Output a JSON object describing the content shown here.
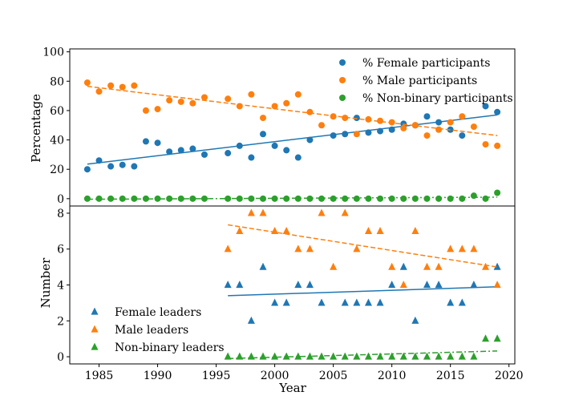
{
  "chart_data": [
    {
      "type": "scatter",
      "panel": "top",
      "ylabel": "Percentage",
      "xlim": [
        1982.5,
        2020.5
      ],
      "ylim": [
        -5,
        102
      ],
      "yticks": [
        0,
        20,
        40,
        60,
        80,
        100
      ],
      "legend_position": "top-right",
      "series": [
        {
          "name": "% Female participants",
          "color": "#1f77b4",
          "marker": "circle",
          "x": [
            1984,
            1985,
            1986,
            1987,
            1988,
            1989,
            1990,
            1991,
            1992,
            1993,
            1994,
            1996,
            1997,
            1998,
            1999,
            2000,
            2001,
            2002,
            2003,
            2005,
            2006,
            2007,
            2008,
            2009,
            2010,
            2011,
            2012,
            2013,
            2014,
            2015,
            2016,
            2018,
            2019
          ],
          "y": [
            20,
            26,
            22,
            23,
            22,
            39,
            38,
            32,
            33,
            34,
            30,
            31,
            36,
            28,
            44,
            36,
            33,
            28,
            40,
            43,
            44,
            55,
            45,
            46,
            47,
            51,
            50,
            56,
            52,
            47,
            43,
            63,
            59
          ],
          "trend": [
            23.5,
            57.0
          ],
          "trend_style": "solid"
        },
        {
          "name": "% Male participants",
          "color": "#ff7f0e",
          "marker": "circle",
          "x": [
            1984,
            1985,
            1986,
            1987,
            1988,
            1989,
            1990,
            1991,
            1992,
            1993,
            1994,
            1996,
            1997,
            1998,
            1999,
            2000,
            2001,
            2002,
            2003,
            2004,
            2005,
            2006,
            2007,
            2008,
            2009,
            2010,
            2011,
            2012,
            2013,
            2014,
            2015,
            2016,
            2017,
            2018,
            2019
          ],
          "y": [
            79,
            73,
            77,
            76,
            77,
            60,
            61,
            67,
            66,
            65,
            69,
            68,
            63,
            71,
            55,
            63,
            65,
            71,
            59,
            50,
            56,
            55,
            44,
            54,
            53,
            52,
            48,
            50,
            43,
            47,
            52,
            56,
            49,
            37,
            36
          ],
          "trend": [
            76.5,
            43.0
          ],
          "trend_style": "dashed"
        },
        {
          "name": "% Non-binary participants",
          "color": "#2ca02c",
          "marker": "circle",
          "x": [
            1984,
            1985,
            1986,
            1987,
            1988,
            1989,
            1990,
            1991,
            1992,
            1993,
            1994,
            1996,
            1997,
            1998,
            1999,
            2000,
            2001,
            2002,
            2003,
            2004,
            2005,
            2006,
            2007,
            2008,
            2009,
            2010,
            2011,
            2012,
            2013,
            2014,
            2015,
            2016,
            2017,
            2018,
            2019
          ],
          "y": [
            0,
            0,
            0,
            0,
            0,
            0,
            0,
            0,
            0,
            0,
            0,
            0,
            0,
            0,
            0,
            0,
            0,
            0,
            0,
            0,
            0,
            0,
            0,
            0,
            0,
            0,
            0,
            0,
            0,
            0,
            0,
            0,
            2,
            0,
            4
          ],
          "trend": [
            -0.4,
            1.0
          ],
          "trend_style": "dashdot"
        }
      ]
    },
    {
      "type": "scatter",
      "panel": "bottom",
      "xlabel": "Year",
      "ylabel": "Number",
      "xlim": [
        1982.5,
        2020.5
      ],
      "ylim": [
        -0.4,
        8.4
      ],
      "xticks": [
        1985,
        1990,
        1995,
        2000,
        2005,
        2010,
        2015,
        2020
      ],
      "yticks": [
        0,
        2,
        4,
        6,
        8
      ],
      "legend_position": "bottom-left",
      "series": [
        {
          "name": "Female leaders",
          "color": "#1f77b4",
          "marker": "triangle",
          "x": [
            1996,
            1997,
            1998,
            1999,
            2000,
            2001,
            2002,
            2003,
            2004,
            2006,
            2007,
            2008,
            2009,
            2010,
            2011,
            2012,
            2013,
            2014,
            2015,
            2016,
            2017,
            2019
          ],
          "y": [
            4,
            4,
            2,
            5,
            3,
            3,
            4,
            4,
            3,
            3,
            3,
            3,
            3,
            4,
            5,
            2,
            4,
            4,
            3,
            3,
            4,
            5
          ],
          "trend": [
            3.4,
            3.9
          ],
          "trend_x": [
            1996,
            2019
          ],
          "trend_style": "solid"
        },
        {
          "name": "Male leaders",
          "color": "#ff7f0e",
          "marker": "triangle",
          "x": [
            1996,
            1997,
            1998,
            1999,
            2000,
            2001,
            2002,
            2003,
            2004,
            2005,
            2006,
            2007,
            2008,
            2009,
            2010,
            2011,
            2012,
            2013,
            2014,
            2015,
            2016,
            2017,
            2018,
            2019
          ],
          "y": [
            6,
            7,
            8,
            8,
            7,
            7,
            6,
            6,
            8,
            5,
            8,
            6,
            7,
            7,
            5,
            4,
            7,
            5,
            5,
            6,
            6,
            6,
            5,
            4
          ],
          "trend": [
            7.35,
            5.0
          ],
          "trend_x": [
            1996,
            2019
          ],
          "trend_style": "dashed"
        },
        {
          "name": "Non-binary leaders",
          "color": "#2ca02c",
          "marker": "triangle",
          "x": [
            1996,
            1997,
            1998,
            1999,
            2000,
            2001,
            2002,
            2003,
            2004,
            2005,
            2006,
            2007,
            2008,
            2009,
            2010,
            2011,
            2012,
            2013,
            2014,
            2015,
            2016,
            2017,
            2018,
            2019
          ],
          "y": [
            0,
            0,
            0,
            0,
            0,
            0,
            0,
            0,
            0,
            0,
            0,
            0,
            0,
            0,
            0,
            0,
            0,
            0,
            0,
            0,
            0,
            0,
            1,
            1
          ],
          "trend": [
            -0.1,
            0.32
          ],
          "trend_x": [
            1996,
            2019
          ],
          "trend_style": "dashdot"
        }
      ]
    }
  ]
}
